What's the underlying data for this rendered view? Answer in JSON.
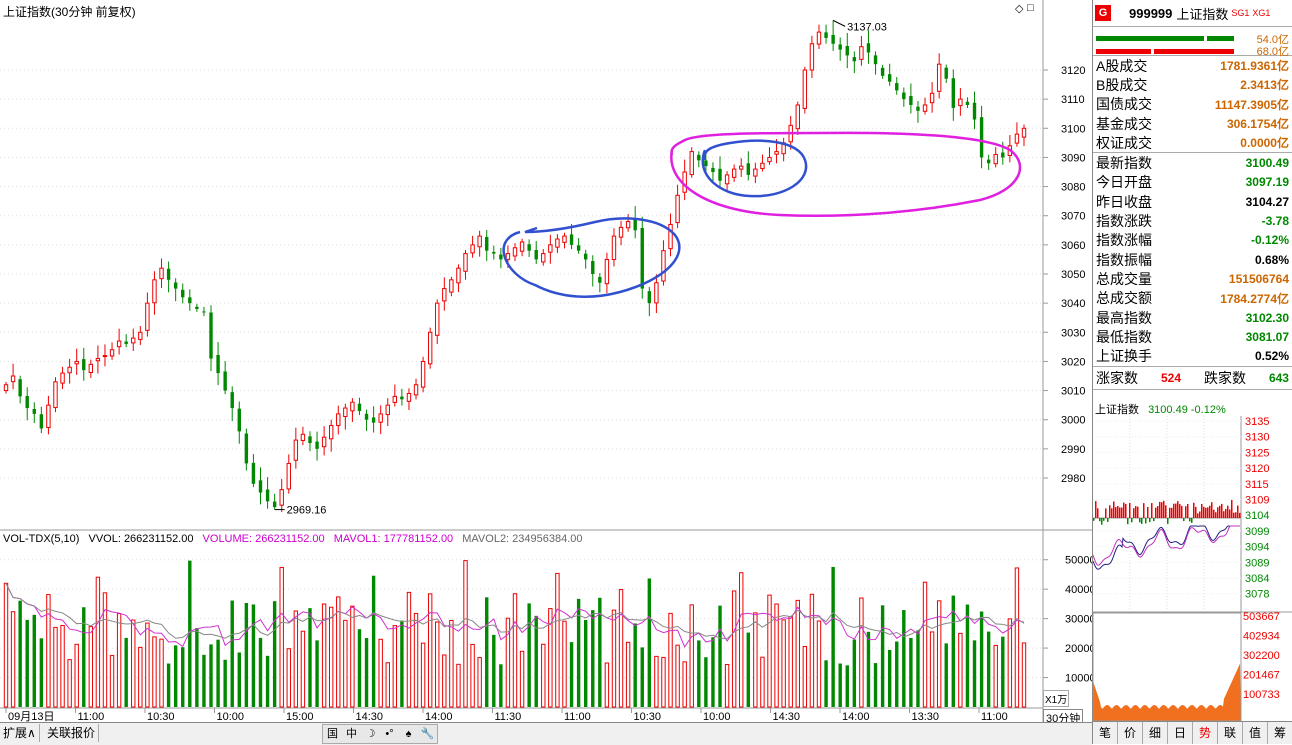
{
  "window": {
    "title": "上证指数(30分钟 前复权)"
  },
  "chart_data": [
    {
      "type": "candlestick",
      "y_ticks": [
        "3120",
        "3110",
        "3100",
        "3090",
        "3080",
        "3070",
        "3060",
        "3050",
        "3040",
        "3030",
        "3020",
        "3010",
        "3000",
        "2990",
        "2980"
      ],
      "ylim": [
        2965,
        3140
      ],
      "high_label": "3137.03",
      "low_label": "2969.16",
      "x_ticks": [
        "09月13日",
        "11:00",
        "10:30",
        "10:00",
        "15:00",
        "14:30",
        "14:00",
        "11:30",
        "11:00",
        "10:30",
        "10:00",
        "14:30",
        "14:00",
        "13:30",
        "11:00"
      ],
      "close": [
        3012,
        3015,
        3008,
        3004,
        3002,
        2997,
        3005,
        3013,
        3016,
        3018,
        3020,
        3017,
        3019,
        3021,
        3022,
        3024,
        3027,
        3026,
        3028,
        3030,
        3040,
        3048,
        3052,
        3048,
        3045,
        3042,
        3040,
        3038,
        3037,
        3021,
        3016,
        3010,
        3004,
        2996,
        2985,
        2978,
        2975,
        2972,
        2970,
        2976,
        2985,
        2993,
        2995,
        2992,
        2990,
        2994,
        2998,
        3002,
        3004,
        3006,
        3003,
        3000,
        2999,
        3002,
        3005,
        3008,
        3007,
        3009,
        3012,
        3020,
        3030,
        3040,
        3045,
        3048,
        3052,
        3057,
        3060,
        3063,
        3058,
        3057,
        3055,
        3057,
        3059,
        3061,
        3058,
        3055,
        3057,
        3060,
        3062,
        3063,
        3060,
        3058,
        3055,
        3050,
        3047,
        3055,
        3063,
        3066,
        3068,
        3065,
        3045,
        3040,
        3047,
        3058,
        3067,
        3077,
        3085,
        3092,
        3089,
        3087,
        3085,
        3082,
        3084,
        3086,
        3087,
        3084,
        3086,
        3088,
        3090,
        3092,
        3095,
        3101,
        3108,
        3120,
        3129,
        3133,
        3131,
        3129,
        3127,
        3125,
        3123,
        3128,
        3126,
        3122,
        3118,
        3116,
        3113,
        3110,
        3108,
        3106,
        3108,
        3112,
        3122,
        3117,
        3107,
        3110,
        3108,
        3103,
        3090,
        3088,
        3091,
        3090,
        3094,
        3098,
        3100
      ],
      "volume_ylabels": [
        "50000",
        "40000",
        "30000",
        "20000",
        "10000"
      ],
      "volume_unit": "X1万"
    },
    {
      "type": "line",
      "name": "上证指数",
      "price": "3100.49",
      "change_pct": "-0.12%",
      "y_ticks": [
        "3135",
        "3130",
        "3125",
        "3120",
        "3115",
        "3109",
        "3104",
        "3099",
        "3094",
        "3089",
        "3084",
        "3078"
      ],
      "vol_ticks": [
        "503667",
        "402934",
        "302200",
        "201467",
        "100733"
      ]
    }
  ],
  "volume_header": {
    "indicator": "VOL-TDX(5,10)",
    "vvol": "VVOL: 266231152.00",
    "volume": "VOLUME: 266231152.00",
    "mavol1": "MAVOL1: 177781152.00",
    "mavol2": "MAVOL2: 234956384.00"
  },
  "right_panel": {
    "code": "999999",
    "name": "上证指数",
    "sg1": "SG1",
    "xg1": "XG1",
    "bar_up": "54.0亿",
    "bar_dn": "68.0亿",
    "turnover": [
      {
        "label": "A股成交",
        "value": "1781.9361",
        "unit": "亿"
      },
      {
        "label": "B股成交",
        "value": "2.3413",
        "unit": "亿"
      },
      {
        "label": "国债成交",
        "value": "11147.3905",
        "unit": "亿"
      },
      {
        "label": "基金成交",
        "value": "306.1754",
        "unit": "亿"
      },
      {
        "label": "权证成交",
        "value": "0.0000",
        "unit": "亿"
      }
    ],
    "quotes": [
      {
        "label": "最新指数",
        "value": "3100.49",
        "color": "dn"
      },
      {
        "label": "今日开盘",
        "value": "3097.19",
        "color": "dn"
      },
      {
        "label": "昨日收盘",
        "value": "3104.27",
        "color": ""
      },
      {
        "label": "指数涨跌",
        "value": "-3.78",
        "color": "dn"
      },
      {
        "label": "指数涨幅",
        "value": "-0.12%",
        "color": "dn"
      },
      {
        "label": "指数振幅",
        "value": "0.68%",
        "color": ""
      },
      {
        "label": "总成交量",
        "value": "151506764",
        "color": "org"
      },
      {
        "label": "总成交额",
        "value": "1784.2774亿",
        "color": "org"
      },
      {
        "label": "最高指数",
        "value": "3102.30",
        "color": "dn"
      },
      {
        "label": "最低指数",
        "value": "3081.07",
        "color": "dn"
      },
      {
        "label": "上证换手",
        "value": "0.52%",
        "color": ""
      }
    ],
    "up_label": "涨家数",
    "up_count": "524",
    "down_label": "跌家数",
    "down_count": "643",
    "tabs": [
      "笔",
      "价",
      "细",
      "日",
      "势",
      "联",
      "值",
      "筹"
    ],
    "active_tab": "势"
  },
  "bottom_bar": {
    "expand": "扩展∧",
    "related": "关联报价",
    "period": "30分钟",
    "tools": [
      "国",
      "中",
      "☽",
      "•°",
      "♠",
      "🔧"
    ]
  }
}
